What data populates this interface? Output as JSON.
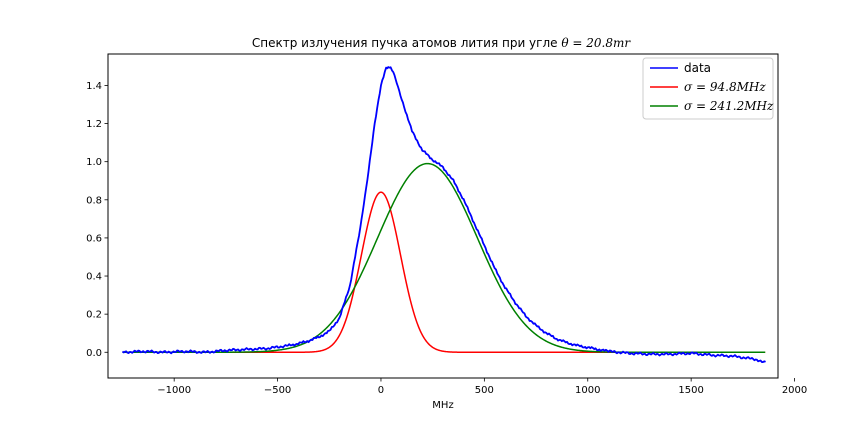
{
  "chart_data": {
    "type": "line",
    "title": "Спектр излучения пучка атомов лития при угле θ = 20.8mr",
    "title_prefix": "Спектр излучения пучка атомов лития при угле ",
    "title_math": "θ = 20.8mr",
    "xlabel": "MHz",
    "ylabel": "",
    "xlim": [
      -1320,
      1920
    ],
    "ylim": [
      -0.135,
      1.565
    ],
    "x_ticks": [
      -1000,
      -500,
      0,
      500,
      1000,
      1500,
      2000
    ],
    "x_tick_labels": [
      "−1000",
      "−500",
      "0",
      "500",
      "1000",
      "1500",
      "2000"
    ],
    "y_ticks": [
      0.0,
      0.2,
      0.4,
      0.6,
      0.8,
      1.0,
      1.2,
      1.4
    ],
    "y_tick_labels": [
      "0.0",
      "0.2",
      "0.4",
      "0.6",
      "0.8",
      "1.0",
      "1.2",
      "1.4"
    ],
    "grid": false,
    "legend_position": "top-right",
    "series": [
      {
        "name": "data",
        "legend_label": "data",
        "color": "#0000ff",
        "points": [
          [
            -1250,
            0.0
          ],
          [
            -1150,
            0.005
          ],
          [
            -1050,
            0.0
          ],
          [
            -950,
            0.005
          ],
          [
            -850,
            0.0
          ],
          [
            -750,
            0.01
          ],
          [
            -650,
            0.015
          ],
          [
            -550,
            0.02
          ],
          [
            -450,
            0.035
          ],
          [
            -400,
            0.045
          ],
          [
            -350,
            0.06
          ],
          [
            -300,
            0.08
          ],
          [
            -250,
            0.11
          ],
          [
            -200,
            0.18
          ],
          [
            -150,
            0.35
          ],
          [
            -100,
            0.65
          ],
          [
            -60,
            0.95
          ],
          [
            -30,
            1.2
          ],
          [
            0,
            1.4
          ],
          [
            25,
            1.49
          ],
          [
            40,
            1.5
          ],
          [
            60,
            1.47
          ],
          [
            100,
            1.33
          ],
          [
            150,
            1.16
          ],
          [
            200,
            1.06
          ],
          [
            250,
            1.01
          ],
          [
            300,
            0.97
          ],
          [
            350,
            0.9
          ],
          [
            400,
            0.8
          ],
          [
            450,
            0.68
          ],
          [
            500,
            0.56
          ],
          [
            550,
            0.44
          ],
          [
            600,
            0.34
          ],
          [
            650,
            0.26
          ],
          [
            700,
            0.19
          ],
          [
            750,
            0.14
          ],
          [
            800,
            0.1
          ],
          [
            850,
            0.07
          ],
          [
            900,
            0.05
          ],
          [
            950,
            0.035
          ],
          [
            1000,
            0.025
          ],
          [
            1050,
            0.015
          ],
          [
            1100,
            0.005
          ],
          [
            1200,
            -0.005
          ],
          [
            1300,
            -0.01
          ],
          [
            1400,
            -0.01
          ],
          [
            1500,
            -0.005
          ],
          [
            1600,
            -0.015
          ],
          [
            1700,
            -0.02
          ],
          [
            1800,
            -0.035
          ],
          [
            1860,
            -0.05
          ]
        ]
      },
      {
        "name": "sigma_94_8",
        "legend_label_symbol": "σ",
        "legend_label_rest": " = 94.8MHz",
        "color": "#ff0000",
        "gaussian": {
          "amplitude": 0.84,
          "center": 0,
          "sigma": 94.8
        },
        "x_range": [
          -1250,
          1860
        ]
      },
      {
        "name": "sigma_241_2",
        "legend_label_symbol": "σ",
        "legend_label_rest": " = 241.2MHz",
        "color": "#008000",
        "gaussian": {
          "amplitude": 0.99,
          "center": 225,
          "sigma": 241.2
        },
        "x_range": [
          -1250,
          1860
        ]
      }
    ]
  }
}
